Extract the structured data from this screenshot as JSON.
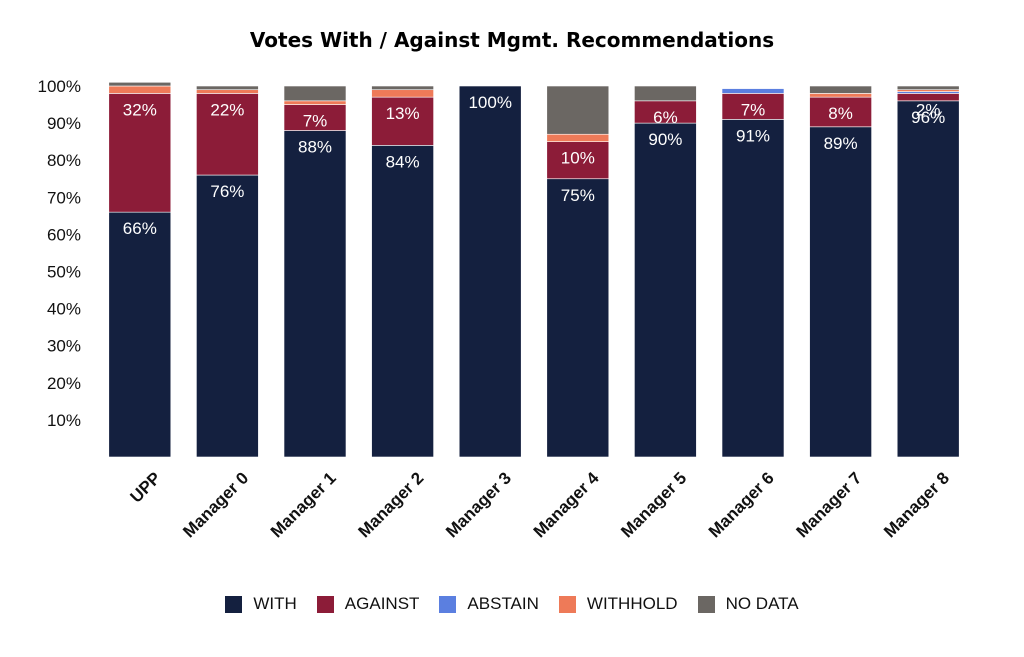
{
  "chart_data": {
    "type": "bar",
    "stacked": true,
    "title": "Votes With / Against Mgmt. Recommendations",
    "xlabel": "",
    "ylabel": "",
    "ylim": [
      0,
      100
    ],
    "yticks": [
      "10%",
      "20%",
      "30%",
      "40%",
      "50%",
      "60%",
      "70%",
      "80%",
      "90%",
      "100%"
    ],
    "categories": [
      "UPP",
      "Manager 0",
      "Manager 1",
      "Manager 2",
      "Manager 3",
      "Manager 4",
      "Manager 5",
      "Manager 6",
      "Manager 7",
      "Manager 8"
    ],
    "series": [
      {
        "name": "WITH",
        "color": "#14203f",
        "values": [
          66,
          76,
          88,
          84,
          100,
          75,
          90,
          91,
          89,
          96
        ],
        "labels": [
          "66%",
          "76%",
          "88%",
          "84%",
          "100%",
          "75%",
          "90%",
          "91%",
          "89%",
          "96%"
        ]
      },
      {
        "name": "AGAINST",
        "color": "#8c1c38",
        "values": [
          32,
          22,
          7,
          13,
          0,
          10,
          6,
          7,
          8,
          2
        ],
        "labels": [
          "32%",
          "22%",
          "7%",
          "13%",
          "",
          "10%",
          "6%",
          "7%",
          "8%",
          "2%"
        ]
      },
      {
        "name": "ABSTAIN",
        "color": "#5b7fe0",
        "values": [
          0,
          0,
          0,
          0,
          0,
          0,
          0,
          1.3,
          0,
          0.5
        ],
        "labels": [
          "",
          "",
          "",
          "",
          "",
          "",
          "",
          "",
          "",
          ""
        ]
      },
      {
        "name": "WITHHOLD",
        "color": "#ee7a58",
        "values": [
          2,
          1,
          1,
          2,
          0,
          2,
          0,
          0,
          1,
          0.5
        ],
        "labels": [
          "",
          "",
          "",
          "",
          "",
          "",
          "",
          "",
          "",
          ""
        ]
      },
      {
        "name": "NO DATA",
        "color": "#6b6763",
        "values": [
          1,
          1,
          4,
          1,
          0,
          13,
          4,
          0,
          2,
          1
        ],
        "labels": [
          "",
          "",
          "",
          "",
          "",
          "",
          "",
          "",
          "",
          ""
        ]
      }
    ],
    "grid": false,
    "legend_position": "bottom"
  }
}
